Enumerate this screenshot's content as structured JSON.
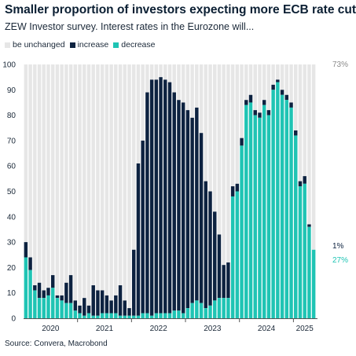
{
  "header": {
    "title": "Smaller proportion of investors expecting more ECB rate cuts",
    "subtitle": "ZEW Investor survey. Interest rates in the Eurozone will..."
  },
  "legend": [
    {
      "label": "be unchanged",
      "color": "#e6e6e6"
    },
    {
      "label": "increase",
      "color": "#0d2240"
    },
    {
      "label": "decrease",
      "color": "#1fc4b4"
    }
  ],
  "source": "Source: Convera, Macrobond",
  "chart_data": {
    "type": "bar",
    "stacked": true,
    "ylim": [
      0,
      100
    ],
    "yticks": [
      0,
      10,
      20,
      30,
      40,
      50,
      60,
      70,
      80,
      90,
      100
    ],
    "x_year_labels": [
      "2020",
      "2021",
      "2022",
      "2023",
      "2024",
      "2025"
    ],
    "grid": false,
    "colors": {
      "unchanged": "#e6e6e6",
      "increase": "#0d2240",
      "decrease": "#1fc4b4"
    },
    "categories": [
      "2020-01",
      "2020-02",
      "2020-03",
      "2020-04",
      "2020-05",
      "2020-06",
      "2020-07",
      "2020-08",
      "2020-09",
      "2020-10",
      "2020-11",
      "2020-12",
      "2021-01",
      "2021-02",
      "2021-03",
      "2021-04",
      "2021-05",
      "2021-06",
      "2021-07",
      "2021-08",
      "2021-09",
      "2021-10",
      "2021-11",
      "2021-12",
      "2022-01",
      "2022-02",
      "2022-03",
      "2022-04",
      "2022-05",
      "2022-06",
      "2022-07",
      "2022-08",
      "2022-09",
      "2022-10",
      "2022-11",
      "2022-12",
      "2023-01",
      "2023-02",
      "2023-03",
      "2023-04",
      "2023-05",
      "2023-06",
      "2023-07",
      "2023-08",
      "2023-09",
      "2023-10",
      "2023-11",
      "2023-12",
      "2024-01",
      "2024-02",
      "2024-03",
      "2024-04",
      "2024-05",
      "2024-06",
      "2024-07",
      "2024-08",
      "2024-09",
      "2024-10",
      "2024-11",
      "2024-12",
      "2025-01",
      "2025-02",
      "2025-03",
      "2025-04",
      "2025-05"
    ],
    "series": [
      {
        "name": "decrease",
        "values": [
          24,
          19,
          11,
          8,
          8,
          9,
          12,
          8,
          7,
          6,
          6,
          3,
          2,
          1,
          2,
          1,
          1,
          2,
          2,
          2,
          2,
          1,
          1,
          1,
          1,
          1,
          2,
          2,
          1,
          2,
          2,
          2,
          2,
          3,
          3,
          2,
          4,
          6,
          7,
          6,
          4,
          5,
          7,
          8,
          8,
          8,
          48,
          50,
          68,
          84,
          85,
          80,
          79,
          84,
          80,
          90,
          93,
          88,
          86,
          83,
          72,
          52,
          53,
          36,
          27
        ]
      },
      {
        "name": "increase",
        "values": [
          6,
          5,
          2,
          6,
          3,
          3,
          5,
          1,
          2,
          8,
          11,
          4,
          3,
          7,
          3,
          12,
          10,
          9,
          7,
          5,
          7,
          12,
          6,
          3,
          26,
          60,
          68,
          87,
          93,
          92,
          93,
          92,
          91,
          86,
          83,
          83,
          78,
          73,
          76,
          67,
          50,
          45,
          35,
          25,
          13,
          14,
          4,
          3,
          3,
          2,
          3,
          2,
          2,
          2,
          2,
          2,
          1,
          2,
          2,
          2,
          2,
          2,
          3,
          1,
          0
        ]
      }
    ],
    "annotations": [
      {
        "text": "73%",
        "series": "unchanged",
        "color": "#8a8a8a"
      },
      {
        "text": "1%",
        "series": "increase",
        "color": "#0d2240"
      },
      {
        "text": "27%",
        "series": "decrease",
        "color": "#1fc4b4"
      }
    ]
  }
}
